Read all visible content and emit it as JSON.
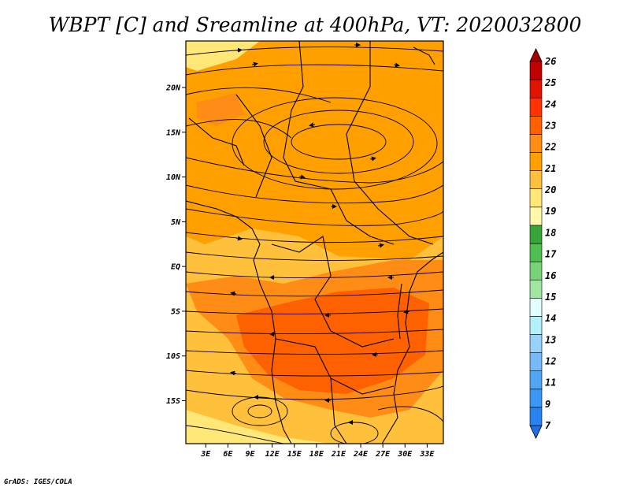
{
  "chart_data": {
    "type": "heatmap",
    "title": "WBPT [C] and Sreamline at 400hPa, VT: 2020032800",
    "x_ticks": [
      "3E",
      "6E",
      "9E",
      "12E",
      "15E",
      "18E",
      "21E",
      "24E",
      "27E",
      "30E",
      "33E"
    ],
    "x_tick_values": [
      3,
      6,
      9,
      12,
      15,
      18,
      21,
      24,
      27,
      30,
      33
    ],
    "y_ticks": [
      "20N",
      "15N",
      "10N",
      "5N",
      "EQ",
      "5S",
      "10S",
      "15S"
    ],
    "y_tick_values": [
      20,
      15,
      10,
      5,
      0,
      -5,
      -10,
      -15
    ],
    "xlim": [
      0.3,
      35.2
    ],
    "ylim": [
      -19.8,
      25.2
    ],
    "colorbar": {
      "labels": [
        "7",
        "9",
        "11",
        "12",
        "13",
        "14",
        "15",
        "16",
        "17",
        "18",
        "19",
        "20",
        "21",
        "22",
        "23",
        "24",
        "25",
        "26"
      ],
      "colors": [
        "#1e6ee6",
        "#2882f0",
        "#3c96f5",
        "#50a5f5",
        "#78b9fa",
        "#96d2fa",
        "#b4f0fa",
        "#e1ffff",
        "#a0e6a0",
        "#78d278",
        "#50be50",
        "#37a537",
        "#fffaaa",
        "#ffe878",
        "#ffc03c",
        "#ffa000",
        "#ff8c14",
        "#ff6000",
        "#ff3200",
        "#e11400",
        "#c00000",
        "#a50000"
      ]
    },
    "field_regions": [
      {
        "level": "20-21",
        "area": "background"
      },
      {
        "level": "21-22",
        "area": "central and north"
      },
      {
        "level": "22-23",
        "area": "equator to 15S"
      },
      {
        "level": "23-24",
        "area": "5S to 15S core"
      }
    ]
  },
  "footer": {
    "credit": "GrADS: IGES/COLA"
  }
}
